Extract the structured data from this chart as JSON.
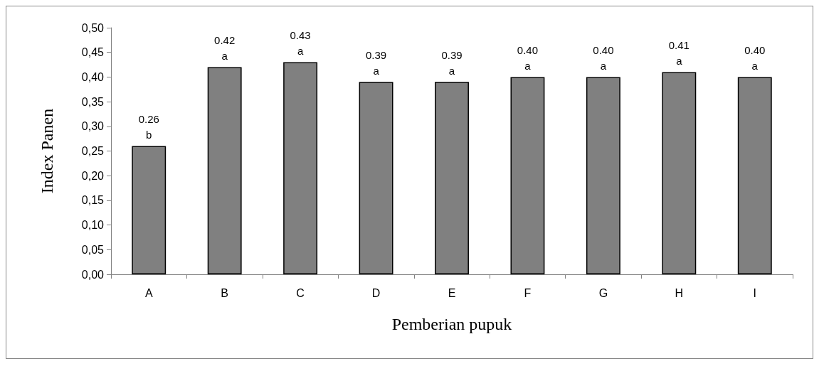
{
  "chart_data": {
    "type": "bar",
    "xlabel": "Pemberian pupuk",
    "ylabel": "Index Panen",
    "categories": [
      "A",
      "B",
      "C",
      "D",
      "E",
      "F",
      "G",
      "H",
      "I"
    ],
    "values": [
      0.26,
      0.42,
      0.43,
      0.39,
      0.39,
      0.4,
      0.4,
      0.41,
      0.4
    ],
    "value_labels": [
      "0.26\nb",
      "0.42\na",
      "0.43\na",
      "0.39\na",
      "0.39\na",
      "0.40\na",
      "0.40\na",
      "0.41\na",
      "0.40\na"
    ],
    "color": "#808080",
    "ylim": [
      0,
      0.5
    ],
    "yticks": [
      {
        "value": 0,
        "label": "0,00"
      },
      {
        "value": 0.05,
        "label": "0,05"
      },
      {
        "value": 0.1,
        "label": "0,10"
      },
      {
        "value": 0.15,
        "label": "0,15"
      },
      {
        "value": 0.2,
        "label": "0,20"
      },
      {
        "value": 0.25,
        "label": "0,25"
      },
      {
        "value": 0.3,
        "label": "0,30"
      },
      {
        "value": 0.35,
        "label": "0,35"
      },
      {
        "value": 0.4,
        "label": "0,40"
      },
      {
        "value": 0.45,
        "label": "0,45"
      },
      {
        "value": 0.5,
        "label": "0,50"
      }
    ],
    "grid": false
  }
}
